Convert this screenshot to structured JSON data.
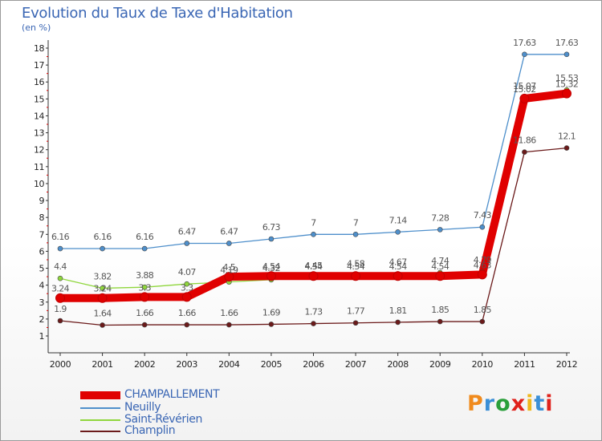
{
  "header": {
    "title": "Evolution du Taux de Taxe d'Habitation",
    "unit": "(en %)"
  },
  "logo": {
    "text": "Proxiti"
  },
  "chart_data": {
    "type": "line",
    "title": "Evolution du Taux de Taxe d'Habitation",
    "ylabel": "(en %)",
    "xlabel": "",
    "x": [
      "2000",
      "2001",
      "2002",
      "2003",
      "2004",
      "2005",
      "2006",
      "2007",
      "2008",
      "2009",
      "2010",
      "2011",
      "2012"
    ],
    "ylim": [
      1,
      18
    ],
    "yticks": [
      1,
      2,
      3,
      4,
      5,
      6,
      7,
      8,
      9,
      10,
      11,
      12,
      13,
      14,
      15,
      16,
      17,
      18
    ],
    "grid": false,
    "legend_position": "bottom-left",
    "series": [
      {
        "name": "CHAMPALLEMENT",
        "color": "#e00000",
        "values": [
          3.24,
          3.24,
          3.3,
          3.3,
          4.5,
          4.54,
          4.54,
          4.54,
          4.54,
          4.54,
          4.63,
          15.02,
          15.32
        ],
        "labels": [
          "3.24",
          "3.24",
          "3.3",
          "3.3",
          "4.5",
          "4.54",
          "4.54",
          "4.54",
          "4.54",
          "4.54",
          "4.63",
          "15.02",
          "15.32"
        ]
      },
      {
        "name": "Neuilly",
        "color": "#4e8fcb",
        "values": [
          6.16,
          6.16,
          6.16,
          6.47,
          6.47,
          6.73,
          7,
          7,
          7.14,
          7.28,
          7.43,
          17.63,
          17.63
        ],
        "labels": [
          "6.16",
          "6.16",
          "6.16",
          "6.47",
          "6.47",
          "6.73",
          "7",
          "7",
          "7.14",
          "7.28",
          "7.43",
          "17.63",
          "17.63"
        ]
      },
      {
        "name": "Saint-Révérien",
        "color": "#8fd63c",
        "values": [
          4.4,
          3.82,
          3.88,
          4.07,
          4.19,
          4.32,
          4.45,
          4.58,
          4.67,
          4.74,
          4.79,
          15.07,
          15.53
        ],
        "labels": [
          "4.4",
          "3.82",
          "3.88",
          "4.07",
          "4.19",
          "4.32",
          "4.45",
          "4.58",
          "4.67",
          "4.74",
          "4.79",
          "15.07",
          "15.53"
        ]
      },
      {
        "name": "Champlin",
        "color": "#6b1a1a",
        "values": [
          1.9,
          1.64,
          1.66,
          1.66,
          1.66,
          1.69,
          1.73,
          1.77,
          1.81,
          1.85,
          1.85,
          11.86,
          12.1
        ],
        "labels": [
          "1.9",
          "1.64",
          "1.66",
          "1.66",
          "1.66",
          "1.69",
          "1.73",
          "1.77",
          "1.81",
          "1.85",
          "1.85",
          "11.86",
          "12.1"
        ]
      }
    ]
  },
  "legend": {
    "items": [
      {
        "label": "CHAMPALLEMENT",
        "color": "#e00000",
        "width": 10
      },
      {
        "label": "Neuilly",
        "color": "#4e8fcb",
        "width": 2
      },
      {
        "label": "Saint-Révérien",
        "color": "#8fd63c",
        "width": 2
      },
      {
        "label": "Champlin",
        "color": "#6b1a1a",
        "width": 2
      }
    ]
  }
}
